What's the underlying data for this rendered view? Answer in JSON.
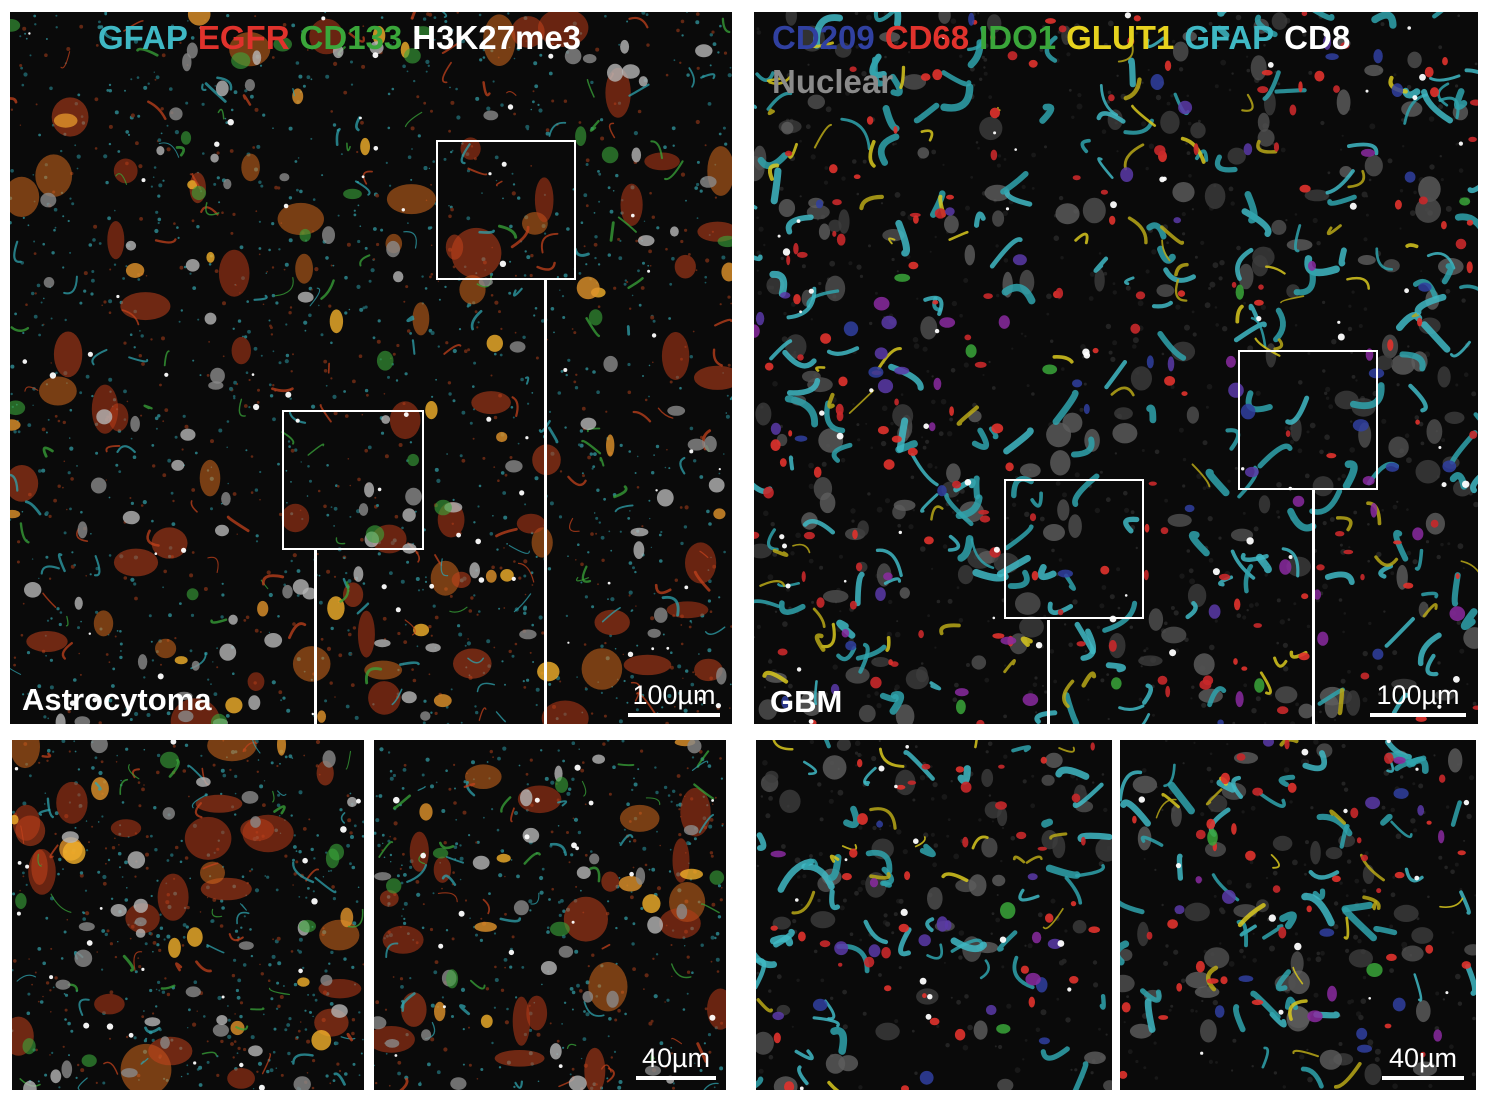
{
  "left_figure": {
    "markers": [
      {
        "name": "GFAP",
        "color": "#3fb8c4"
      },
      {
        "name": "EGFR",
        "color": "#e0322c"
      },
      {
        "name": "CD133",
        "color": "#3aa63a"
      },
      {
        "name": "H3K27me3",
        "color": "#ffffff"
      }
    ],
    "tissue_label": "Astrocytoma",
    "overview_scalebar": "100µm",
    "zoom_scalebar": "40µm"
  },
  "right_figure": {
    "markers_line1": [
      {
        "name": "CD209",
        "color": "#3040a0"
      },
      {
        "name": "CD68",
        "color": "#e0322c"
      },
      {
        "name": "IDO1",
        "color": "#3aa63a"
      },
      {
        "name": "GLUT1",
        "color": "#e6d21e"
      },
      {
        "name": "GFAP",
        "color": "#3fb8c4"
      },
      {
        "name": "CD8",
        "color": "#ffffff"
      }
    ],
    "markers_line2": [
      {
        "name": "Nuclear",
        "color": "#8a8a8a"
      }
    ],
    "tissue_label": "GBM",
    "overview_scalebar": "100µm",
    "zoom_scalebar": "40µm"
  }
}
